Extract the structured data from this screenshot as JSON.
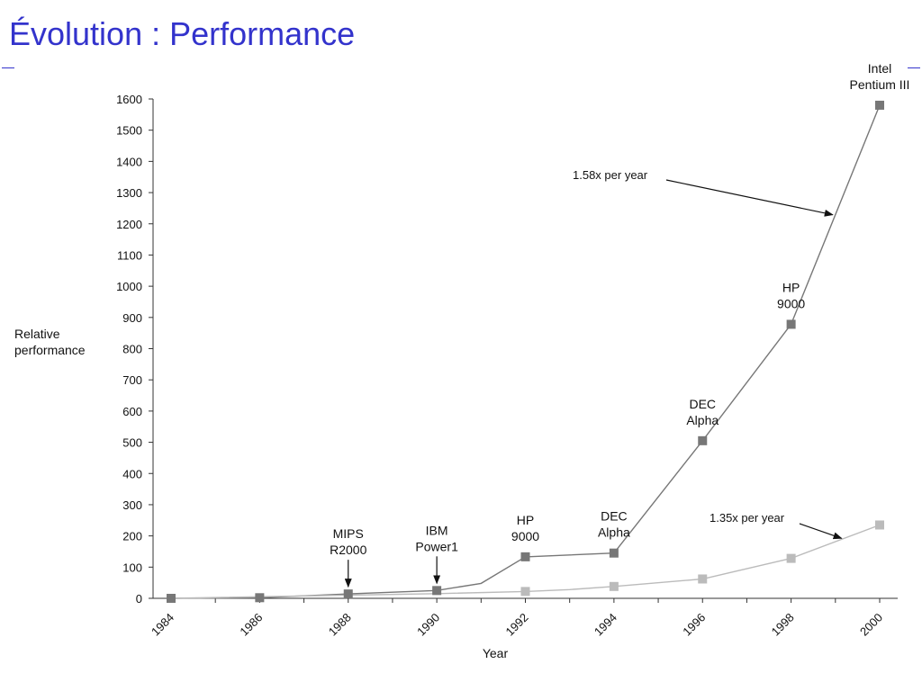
{
  "slide": {
    "title": "Évolution : Performance"
  },
  "chart_data": {
    "type": "line",
    "xlabel": "Year",
    "ylabel_lines": [
      "Relative",
      "performance"
    ],
    "xlim": [
      1984,
      2000
    ],
    "ylim": [
      0,
      1600
    ],
    "x_ticks": [
      "1984",
      "1986",
      "1988",
      "1990",
      "1992",
      "1994",
      "1996",
      "1998",
      "2000"
    ],
    "y_ticks": [
      0,
      100,
      200,
      300,
      400,
      500,
      600,
      700,
      800,
      900,
      1000,
      1100,
      1200,
      1300,
      1400,
      1500,
      1600
    ],
    "grid": false,
    "series": [
      {
        "color": "#777777",
        "points": [
          {
            "x": 1984,
            "y": 0,
            "marker": true
          },
          {
            "x": 1986,
            "y": 2,
            "marker": true
          },
          {
            "x": 1988,
            "y": 14,
            "marker": true
          },
          {
            "x": 1990,
            "y": 25,
            "marker": true
          },
          {
            "x": 1991,
            "y": 48,
            "marker": false
          },
          {
            "x": 1992,
            "y": 133,
            "marker": true
          },
          {
            "x": 1994,
            "y": 145,
            "marker": true
          },
          {
            "x": 1996,
            "y": 505,
            "marker": true
          },
          {
            "x": 1998,
            "y": 878,
            "marker": true
          },
          {
            "x": 2000,
            "y": 1580,
            "marker": true
          }
        ]
      },
      {
        "color": "#bbbbbb",
        "points": [
          {
            "x": 1984,
            "y": 0,
            "marker": false
          },
          {
            "x": 1988,
            "y": 10,
            "marker": false
          },
          {
            "x": 1990,
            "y": 15,
            "marker": false
          },
          {
            "x": 1992,
            "y": 22,
            "marker": true
          },
          {
            "x": 1993,
            "y": 28,
            "marker": false
          },
          {
            "x": 1994,
            "y": 38,
            "marker": true
          },
          {
            "x": 1996,
            "y": 62,
            "marker": true
          },
          {
            "x": 1998,
            "y": 128,
            "marker": true
          },
          {
            "x": 2000,
            "y": 235,
            "marker": true
          }
        ]
      }
    ],
    "annotations": [
      {
        "lines": [
          "MIPS",
          "R2000"
        ],
        "x": 1988,
        "y": 14,
        "arrow": true
      },
      {
        "lines": [
          "IBM",
          "Power1"
        ],
        "x": 1990,
        "y": 25,
        "arrow": true
      },
      {
        "lines": [
          "HP",
          "9000"
        ],
        "x": 1992,
        "y": 133,
        "arrow": false
      },
      {
        "lines": [
          "DEC",
          "Alpha"
        ],
        "x": 1994,
        "y": 145,
        "arrow": false
      },
      {
        "lines": [
          "DEC",
          "Alpha"
        ],
        "x": 1996,
        "y": 505,
        "arrow": false
      },
      {
        "lines": [
          "HP",
          "9000"
        ],
        "x": 1998,
        "y": 878,
        "arrow": false
      },
      {
        "lines": [
          "Intel",
          "Pentium III"
        ],
        "x": 2000,
        "y": 1580,
        "arrow": false
      }
    ],
    "rate_labels": [
      {
        "text": "1.58x per year",
        "series": 0
      },
      {
        "text": "1.35x per year",
        "series": 1
      }
    ]
  }
}
